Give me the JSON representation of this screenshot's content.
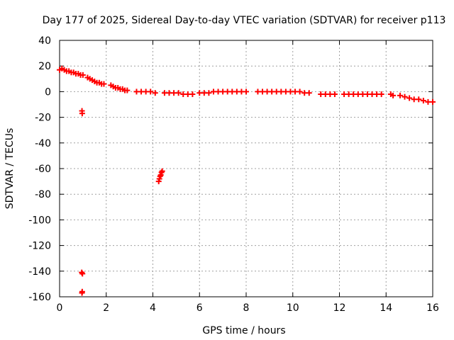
{
  "chart_data": {
    "type": "scatter",
    "title": "Day 177 of 2025, Sidereal Day-to-day VTEC variation (SDTVAR) for receiver p113",
    "xlabel": "GPS time / hours",
    "ylabel": "SDTVAR / TECUs",
    "xlim": [
      0,
      16
    ],
    "ylim": [
      -160,
      40
    ],
    "grid": true,
    "x_ticks": [
      0,
      2,
      4,
      6,
      8,
      10,
      12,
      14,
      16
    ],
    "x_tick_labels": [
      "0",
      "2",
      "4",
      "6",
      "8",
      "10",
      "12",
      "14",
      "16"
    ],
    "y_ticks": [
      40,
      20,
      0,
      -20,
      -40,
      -60,
      -80,
      -100,
      -120,
      -140,
      -160
    ],
    "y_tick_labels": [
      "40",
      "20",
      "0",
      "-20",
      "-40",
      "-60",
      "-80",
      "-100",
      "-120",
      "-140",
      "-160"
    ],
    "series": [
      {
        "name": "SDTVAR",
        "color": "#ff0000",
        "marker": "plus",
        "x": [
          0.0,
          0.1,
          0.2,
          0.3,
          0.4,
          0.5,
          0.6,
          0.7,
          0.8,
          0.9,
          0.96,
          0.97,
          0.98,
          0.95,
          0.97,
          0.96,
          1.0,
          1.2,
          1.3,
          1.4,
          1.5,
          1.6,
          1.7,
          1.8,
          1.9,
          2.2,
          2.3,
          2.4,
          2.5,
          2.6,
          2.7,
          2.8,
          2.9,
          3.3,
          3.5,
          3.7,
          3.9,
          4.1,
          4.25,
          4.28,
          4.31,
          4.34,
          4.37,
          4.4,
          4.5,
          4.7,
          4.9,
          5.1,
          5.3,
          5.5,
          5.7,
          6.0,
          6.2,
          6.4,
          6.6,
          6.8,
          7.0,
          7.2,
          7.4,
          7.6,
          7.8,
          8.0,
          8.5,
          8.7,
          8.9,
          9.1,
          9.3,
          9.5,
          9.7,
          9.9,
          10.1,
          10.3,
          10.5,
          10.7,
          11.2,
          11.4,
          11.6,
          11.8,
          12.2,
          12.4,
          12.6,
          12.8,
          13.0,
          13.2,
          13.4,
          13.6,
          13.8,
          14.2,
          14.3,
          14.6,
          14.8,
          15.0,
          15.2,
          15.4,
          15.6,
          15.8,
          16.0
        ],
        "y": [
          17,
          18,
          17,
          16,
          16,
          15,
          15,
          14,
          14,
          13,
          -15,
          -17,
          -142,
          -141,
          -156,
          -157,
          13,
          11,
          10,
          9,
          8,
          7,
          7,
          6,
          6,
          5,
          4,
          3,
          3,
          2,
          2,
          1,
          1,
          0,
          0,
          0,
          0,
          -1,
          -70,
          -68,
          -66,
          -65,
          -63,
          -62,
          -1,
          -1,
          -1,
          -1,
          -2,
          -2,
          -2,
          -1,
          -1,
          -1,
          0,
          0,
          0,
          0,
          0,
          0,
          0,
          0,
          0,
          0,
          0,
          0,
          0,
          0,
          0,
          0,
          0,
          0,
          -1,
          -1,
          -2,
          -2,
          -2,
          -2,
          -2,
          -2,
          -2,
          -2,
          -2,
          -2,
          -2,
          -2,
          -2,
          -2,
          -3,
          -3,
          -4,
          -5,
          -6,
          -6,
          -7,
          -8,
          -8
        ]
      }
    ]
  }
}
